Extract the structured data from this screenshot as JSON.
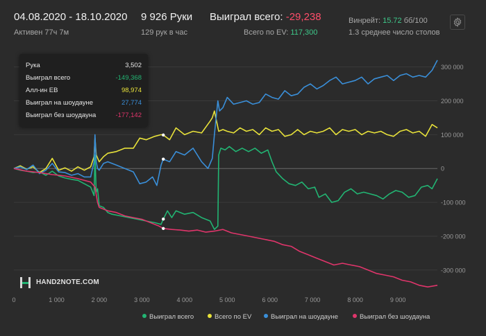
{
  "header": {
    "date_range": "04.08.2020 - 18.10.2020",
    "active": "Активен 77ч 7м",
    "hands": "9 926 Руки",
    "hands_per_hour": "129 рук в час",
    "won_total_label": "Выиграл всего:",
    "won_total_value": "-29,238",
    "ev_label": "Всего по EV:",
    "ev_value": "117,300",
    "winrate_label": "Винрейт:",
    "winrate_value": "15.72",
    "winrate_unit": "бб/100",
    "tables": "1.3 среднее число столов",
    "settings_icon": "gear-icon"
  },
  "tooltip": {
    "rows": [
      {
        "label": "Рука",
        "value": "3,502",
        "color": "#e6e6e6"
      },
      {
        "label": "Выиграл всего",
        "value": "-149,368",
        "color": "#22b573"
      },
      {
        "label": "Алл-ин EB",
        "value": "98,974",
        "color": "#e8e23a"
      },
      {
        "label": "Выиграл на шоудауне",
        "value": "27,774",
        "color": "#3a8fd9"
      },
      {
        "label": "Выиграл без шоудауна",
        "value": "-177,142",
        "color": "#e0356b"
      }
    ]
  },
  "logo": {
    "text": "HAND2NOTE.COM"
  },
  "chart_data": {
    "type": "line",
    "xlim": [
      0,
      9926
    ],
    "ylim": [
      -370000,
      330000
    ],
    "x_ticks": [
      0,
      1000,
      2000,
      3000,
      4000,
      5000,
      6000,
      7000,
      8000,
      9000
    ],
    "x_tick_labels": [
      "0",
      "1 000",
      "2 000",
      "3 000",
      "4 000",
      "5 000",
      "6 000",
      "7 000",
      "8 000",
      "9 000"
    ],
    "y_ticks": [
      300000,
      200000,
      100000,
      0,
      -100000,
      -200000,
      -300000
    ],
    "y_tick_labels": [
      "300 000",
      "200 000",
      "100 000",
      "0",
      "-100 000",
      "-200 000",
      "-300 000"
    ],
    "grid": true,
    "legend_position": "bottom",
    "hover_x": 3502,
    "series": [
      {
        "name": "Выиграл всего",
        "color": "#22b573",
        "x": [
          0,
          150,
          300,
          450,
          600,
          750,
          900,
          1050,
          1200,
          1350,
          1500,
          1650,
          1800,
          1880,
          1900,
          1930,
          1960,
          2000,
          2100,
          2200,
          2300,
          2500,
          2700,
          2900,
          3100,
          3300,
          3450,
          3502,
          3600,
          3700,
          3800,
          4000,
          4200,
          4400,
          4600,
          4700,
          4780,
          4800,
          4850,
          4950,
          5050,
          5200,
          5350,
          5500,
          5650,
          5800,
          5950,
          6050,
          6150,
          6300,
          6450,
          6600,
          6750,
          6900,
          7050,
          7150,
          7300,
          7450,
          7600,
          7750,
          7900,
          8050,
          8200,
          8350,
          8500,
          8650,
          8800,
          8950,
          9100,
          9250,
          9400,
          9550,
          9700,
          9800,
          9926
        ],
        "values": [
          0,
          -5000,
          -8000,
          -12000,
          -10000,
          -20000,
          -8000,
          -22000,
          -28000,
          -32000,
          -35000,
          -45000,
          -55000,
          -80000,
          40000,
          -70000,
          -60000,
          -110000,
          -115000,
          -130000,
          -135000,
          -140000,
          -145000,
          -150000,
          -155000,
          -160000,
          -165000,
          -149368,
          -125000,
          -145000,
          -125000,
          -135000,
          -130000,
          -145000,
          -155000,
          -180000,
          -170000,
          40000,
          60000,
          55000,
          65000,
          50000,
          60000,
          50000,
          60000,
          45000,
          55000,
          20000,
          -10000,
          -30000,
          -45000,
          -50000,
          -40000,
          -60000,
          -55000,
          -85000,
          -75000,
          -100000,
          -95000,
          -70000,
          -60000,
          -75000,
          -70000,
          -75000,
          -80000,
          -90000,
          -75000,
          -65000,
          -70000,
          -85000,
          -80000,
          -55000,
          -50000,
          -60000,
          -30000
        ]
      },
      {
        "name": "Всего по EV",
        "color": "#e8e23a",
        "x": [
          0,
          150,
          300,
          450,
          600,
          750,
          900,
          1050,
          1200,
          1350,
          1500,
          1650,
          1800,
          1880,
          1900,
          1930,
          2000,
          2100,
          2200,
          2400,
          2600,
          2800,
          2950,
          3100,
          3300,
          3450,
          3502,
          3650,
          3800,
          4000,
          4200,
          4400,
          4600,
          4650,
          4700,
          4800,
          4900,
          5000,
          5150,
          5300,
          5450,
          5600,
          5750,
          5900,
          6050,
          6200,
          6350,
          6500,
          6650,
          6800,
          6950,
          7100,
          7250,
          7400,
          7550,
          7700,
          7850,
          8000,
          8150,
          8300,
          8450,
          8600,
          8750,
          8900,
          9050,
          9200,
          9350,
          9500,
          9650,
          9800,
          9926
        ],
        "values": [
          0,
          8000,
          -2000,
          5000,
          -12000,
          0,
          30000,
          -5000,
          2000,
          -8000,
          5000,
          -5000,
          5000,
          35000,
          90000,
          40000,
          20000,
          35000,
          45000,
          50000,
          60000,
          60000,
          90000,
          85000,
          95000,
          100000,
          98974,
          85000,
          120000,
          100000,
          110000,
          105000,
          140000,
          150000,
          170000,
          110000,
          115000,
          110000,
          105000,
          120000,
          110000,
          115000,
          100000,
          120000,
          110000,
          115000,
          95000,
          100000,
          115000,
          100000,
          110000,
          105000,
          110000,
          120000,
          100000,
          115000,
          110000,
          115000,
          100000,
          110000,
          105000,
          110000,
          100000,
          95000,
          110000,
          115000,
          105000,
          110000,
          95000,
          130000,
          120000
        ]
      },
      {
        "name": "Выиграл на шоудауне",
        "color": "#3a8fd9",
        "x": [
          0,
          150,
          300,
          450,
          600,
          750,
          900,
          1050,
          1200,
          1350,
          1500,
          1650,
          1800,
          1880,
          1900,
          1930,
          1960,
          2000,
          2100,
          2200,
          2400,
          2600,
          2800,
          2950,
          3100,
          3250,
          3350,
          3450,
          3502,
          3650,
          3800,
          4000,
          4200,
          4400,
          4550,
          4650,
          4700,
          4780,
          4820,
          4900,
          5000,
          5150,
          5300,
          5450,
          5600,
          5750,
          5900,
          6050,
          6200,
          6350,
          6500,
          6650,
          6800,
          6950,
          7100,
          7250,
          7400,
          7550,
          7700,
          7850,
          8000,
          8150,
          8300,
          8450,
          8600,
          8750,
          8900,
          9050,
          9200,
          9350,
          9500,
          9650,
          9800,
          9926
        ],
        "values": [
          0,
          5000,
          -3000,
          10000,
          -15000,
          -5000,
          15000,
          -10000,
          -12000,
          -20000,
          -15000,
          -25000,
          -25000,
          20000,
          100000,
          20000,
          0,
          -5000,
          15000,
          20000,
          10000,
          0,
          -10000,
          -45000,
          -40000,
          -25000,
          -50000,
          10000,
          27774,
          20000,
          50000,
          40000,
          60000,
          20000,
          0,
          30000,
          100000,
          200000,
          170000,
          180000,
          210000,
          190000,
          195000,
          200000,
          190000,
          195000,
          220000,
          210000,
          205000,
          230000,
          215000,
          220000,
          240000,
          250000,
          235000,
          245000,
          260000,
          270000,
          250000,
          255000,
          260000,
          270000,
          250000,
          265000,
          270000,
          275000,
          260000,
          275000,
          280000,
          270000,
          275000,
          270000,
          290000,
          320000
        ]
      },
      {
        "name": "Выиграл без шоудауна",
        "color": "#e0356b",
        "x": [
          0,
          300,
          600,
          900,
          1200,
          1500,
          1800,
          1900,
          1960,
          2000,
          2200,
          2400,
          2600,
          2800,
          3000,
          3200,
          3400,
          3502,
          3700,
          3900,
          4100,
          4300,
          4500,
          4700,
          4900,
          5100,
          5300,
          5500,
          5700,
          5900,
          6100,
          6300,
          6500,
          6700,
          6900,
          7100,
          7300,
          7500,
          7700,
          7900,
          8100,
          8300,
          8500,
          8700,
          8900,
          9100,
          9300,
          9500,
          9700,
          9926
        ],
        "values": [
          0,
          -8000,
          -12000,
          -18000,
          -22000,
          -30000,
          -40000,
          -55000,
          -100000,
          -115000,
          -125000,
          -130000,
          -140000,
          -145000,
          -150000,
          -160000,
          -170000,
          -177142,
          -180000,
          -182000,
          -185000,
          -182000,
          -188000,
          -185000,
          -180000,
          -190000,
          -195000,
          -200000,
          -205000,
          -210000,
          -215000,
          -225000,
          -230000,
          -245000,
          -255000,
          -265000,
          -275000,
          -285000,
          -280000,
          -285000,
          -290000,
          -300000,
          -310000,
          -315000,
          -320000,
          -330000,
          -335000,
          -345000,
          -350000,
          -345000
        ]
      }
    ]
  }
}
